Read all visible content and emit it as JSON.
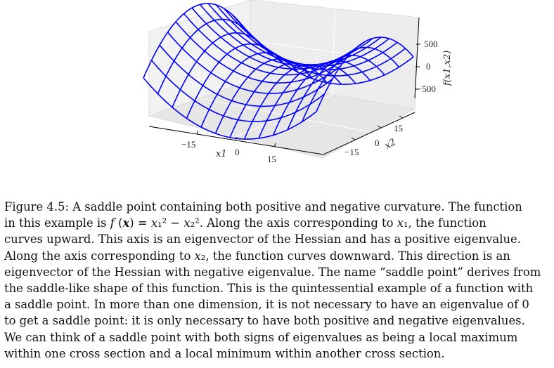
{
  "chart_data": {
    "type": "surface",
    "function": "f(x1, x2) = x1^2 - x2^2",
    "x1": [
      -15,
      -12.5,
      -10,
      -7.5,
      -5,
      -2.5,
      0,
      2.5,
      5,
      7.5,
      10,
      12.5,
      15
    ],
    "x2": [
      -15,
      -12.5,
      -10,
      -7.5,
      -5,
      -2.5,
      0,
      2.5,
      5,
      7.5,
      10,
      12.5,
      15
    ],
    "x1_label": "x1",
    "x2_label": "x2",
    "z_label": "f(x1,x2)",
    "x1_ticks": [
      "−15",
      "0",
      "15"
    ],
    "x2_ticks": [
      "−15",
      "0",
      "15"
    ],
    "z_ticks": [
      "500",
      "0",
      "−500"
    ],
    "x1_lim": [
      -15,
      15
    ],
    "x2_lim": [
      -15,
      15
    ],
    "z_lim": [
      -225,
      225
    ],
    "color": "#0000ff",
    "grid": true
  },
  "caption": {
    "lines": [
      "Figure 4.5: A saddle point containing both positive and negative curvature. The function",
      "in this example is f (x) = x₁² − x₂². Along the axis corresponding to x₁, the function",
      "curves upward. This axis is an eigenvector of the Hessian and has a positive eigenvalue.",
      "Along the axis corresponding to x₂, the function curves downward. This direction is an",
      "eigenvector of the Hessian with negative eigenvalue. The name “saddle point” derives from",
      "the saddle-like shape of this function. This is the quintessential example of a function with",
      "a saddle point. In more than one dimension, it is not necessary to have an eigenvalue of 0",
      "to get a saddle point: it is only necessary to have both positive and negative eigenvalues.",
      "We can think of a saddle point with both signs of eigenvalues as being a local maximum",
      "within one cross section and a local minimum within another cross section."
    ]
  }
}
